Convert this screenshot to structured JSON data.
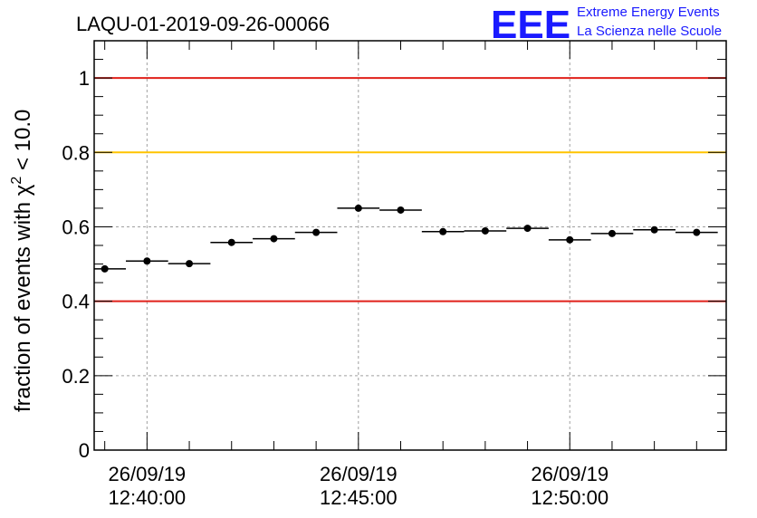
{
  "header": {
    "run_id": "LAQU-01-2019-09-26-00066",
    "logo_mark": "EEE",
    "logo_line1": "Extreme Energy Events",
    "logo_line2": "La Scienza nelle Scuole"
  },
  "colors": {
    "red_limit": "#e0201a",
    "yellow_limit": "#ffc400",
    "marker": "#000000",
    "grid": "#a0a0a0",
    "logo": "#1a1aff"
  },
  "chart_data": {
    "type": "scatter",
    "title": "LAQU-01-2019-09-26-00066",
    "ylabel_prefix": "fraction of events with χ",
    "ylabel_sup": "2",
    "ylabel_suffix": " < 10.0",
    "xlabel": "",
    "ylim": [
      0,
      1.1
    ],
    "yticks": [
      0,
      0.2,
      0.4,
      0.6,
      0.8,
      1
    ],
    "ytick_labels": [
      "0",
      "0.2",
      "0.4",
      "0.6",
      "0.8",
      "1"
    ],
    "xlim_minutes": [
      -1.25,
      13.7
    ],
    "xticks": [
      {
        "minutes": 0,
        "date": "26/09/19",
        "time": "12:40:00"
      },
      {
        "minutes": 5,
        "date": "26/09/19",
        "time": "12:45:00"
      },
      {
        "minutes": 10,
        "date": "26/09/19",
        "time": "12:50:00"
      }
    ],
    "bin_width_minutes": 1,
    "x_centers_minutes": [
      -1.0,
      0.0,
      1.0,
      2.0,
      3.0,
      4.0,
      5.0,
      6.0,
      7.0,
      8.0,
      9.0,
      10.0,
      11.0,
      12.0,
      13.0
    ],
    "values": [
      0.487,
      0.508,
      0.501,
      0.558,
      0.568,
      0.585,
      0.65,
      0.645,
      0.587,
      0.589,
      0.596,
      0.565,
      0.582,
      0.592,
      0.585
    ],
    "reference_lines": [
      {
        "y": 1.0,
        "color": "red"
      },
      {
        "y": 0.8,
        "color": "yellow"
      },
      {
        "y": 0.4,
        "color": "red"
      }
    ],
    "grid": true,
    "legend": "none"
  }
}
